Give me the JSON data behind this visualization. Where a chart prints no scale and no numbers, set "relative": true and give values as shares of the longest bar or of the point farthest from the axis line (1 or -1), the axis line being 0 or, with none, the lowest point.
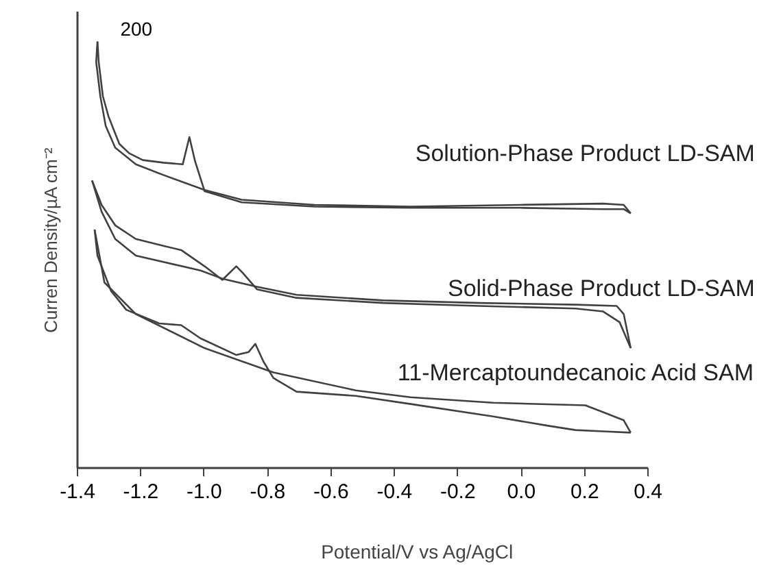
{
  "chart_data": {
    "type": "line",
    "xlabel": "Potential/V vs Ag/AgCl",
    "ylabel": "Curren Density/µA cm⁻²",
    "relative": true,
    "xlim": [
      -1.4,
      0.4
    ],
    "xticks": [
      -1.4,
      -1.2,
      {
        "value": -1.0,
        "label": "-1.0"
      },
      -0.8,
      -0.6,
      -0.4,
      -0.2,
      {
        "value": 0.0,
        "label": "0.0"
      },
      0.2,
      0.4
    ],
    "grid": false,
    "line_style": "solid",
    "marker": "none",
    "annotations": [
      "200"
    ],
    "series": [
      {
        "name": "Solution-Phase Product LD-SAM",
        "color": "#404040",
        "x": [
          -1.337,
          -1.333,
          -1.32,
          -1.302,
          -1.268,
          -1.237,
          -1.194,
          -1.129,
          -1.068,
          -1.047,
          -1.029,
          -0.999,
          -0.882,
          -0.652,
          -0.349,
          -0.002,
          0.258,
          0.323,
          0.345
        ],
        "values": [
          1.0,
          0.952,
          0.872,
          0.824,
          0.76,
          0.738,
          0.722,
          0.716,
          0.712,
          0.776,
          0.719,
          0.649,
          0.623,
          0.613,
          0.61,
          0.61,
          0.607,
          0.607,
          0.597
        ]
      },
      {
        "color": "#404040",
        "x": [
          -1.337,
          -1.341,
          -1.328,
          -1.311,
          -1.281,
          -1.216,
          -1.129,
          -0.999,
          -0.882,
          -0.652,
          -0.349,
          -0.002,
          0.258,
          0.323,
          0.345
        ],
        "values": [
          1.0,
          0.952,
          0.872,
          0.802,
          0.751,
          0.712,
          0.687,
          0.652,
          0.629,
          0.617,
          0.613,
          0.617,
          0.62,
          0.617,
          0.597
        ]
      },
      {
        "name": "Solid-Phase Product LD-SAM",
        "color": "#404040",
        "x": [
          -1.354,
          -1.324,
          -1.281,
          -1.216,
          -1.129,
          -1.073,
          -0.999,
          -0.943,
          -0.921,
          -0.899,
          -0.878,
          -0.834,
          -0.709,
          -0.436,
          -0.132,
          0.171,
          0.258,
          0.31,
          0.345
        ],
        "values": [
          0.674,
          0.617,
          0.569,
          0.537,
          0.521,
          0.511,
          0.473,
          0.441,
          0.457,
          0.473,
          0.457,
          0.419,
          0.399,
          0.387,
          0.38,
          0.374,
          0.367,
          0.342,
          0.281
        ]
      },
      {
        "color": "#404040",
        "x": [
          -1.354,
          -1.324,
          -1.281,
          -1.216,
          -1.012,
          -0.943,
          -0.834,
          -0.709,
          -0.436,
          -0.132,
          0.171,
          0.301,
          0.323,
          0.345
        ],
        "values": [
          0.674,
          0.601,
          0.537,
          0.498,
          0.463,
          0.444,
          0.425,
          0.406,
          0.393,
          0.387,
          0.383,
          0.38,
          0.361,
          0.281
        ]
      },
      {
        "name": "11-Mercaptoundecanoic Acid SAM",
        "color": "#404040",
        "x": [
          -1.346,
          -1.337,
          -1.294,
          -1.246,
          -1.142,
          -1.073,
          -1.012,
          -0.899,
          -0.86,
          -0.839,
          -0.813,
          -0.782,
          -0.709,
          -0.522,
          -0.349,
          -0.089,
          0.085,
          0.171,
          0.258,
          0.345
        ],
        "values": [
          0.559,
          0.498,
          0.415,
          0.371,
          0.339,
          0.335,
          0.304,
          0.265,
          0.272,
          0.291,
          0.249,
          0.211,
          0.179,
          0.169,
          0.15,
          0.121,
          0.099,
          0.089,
          0.086,
          0.083
        ]
      },
      {
        "color": "#404040",
        "x": [
          -1.346,
          -1.315,
          -1.216,
          -0.999,
          -0.782,
          -0.522,
          -0.349,
          -0.089,
          0.202,
          0.258,
          0.323,
          0.345
        ],
        "values": [
          0.559,
          0.435,
          0.361,
          0.281,
          0.224,
          0.182,
          0.166,
          0.153,
          0.147,
          0.131,
          0.112,
          0.083
        ]
      }
    ]
  }
}
